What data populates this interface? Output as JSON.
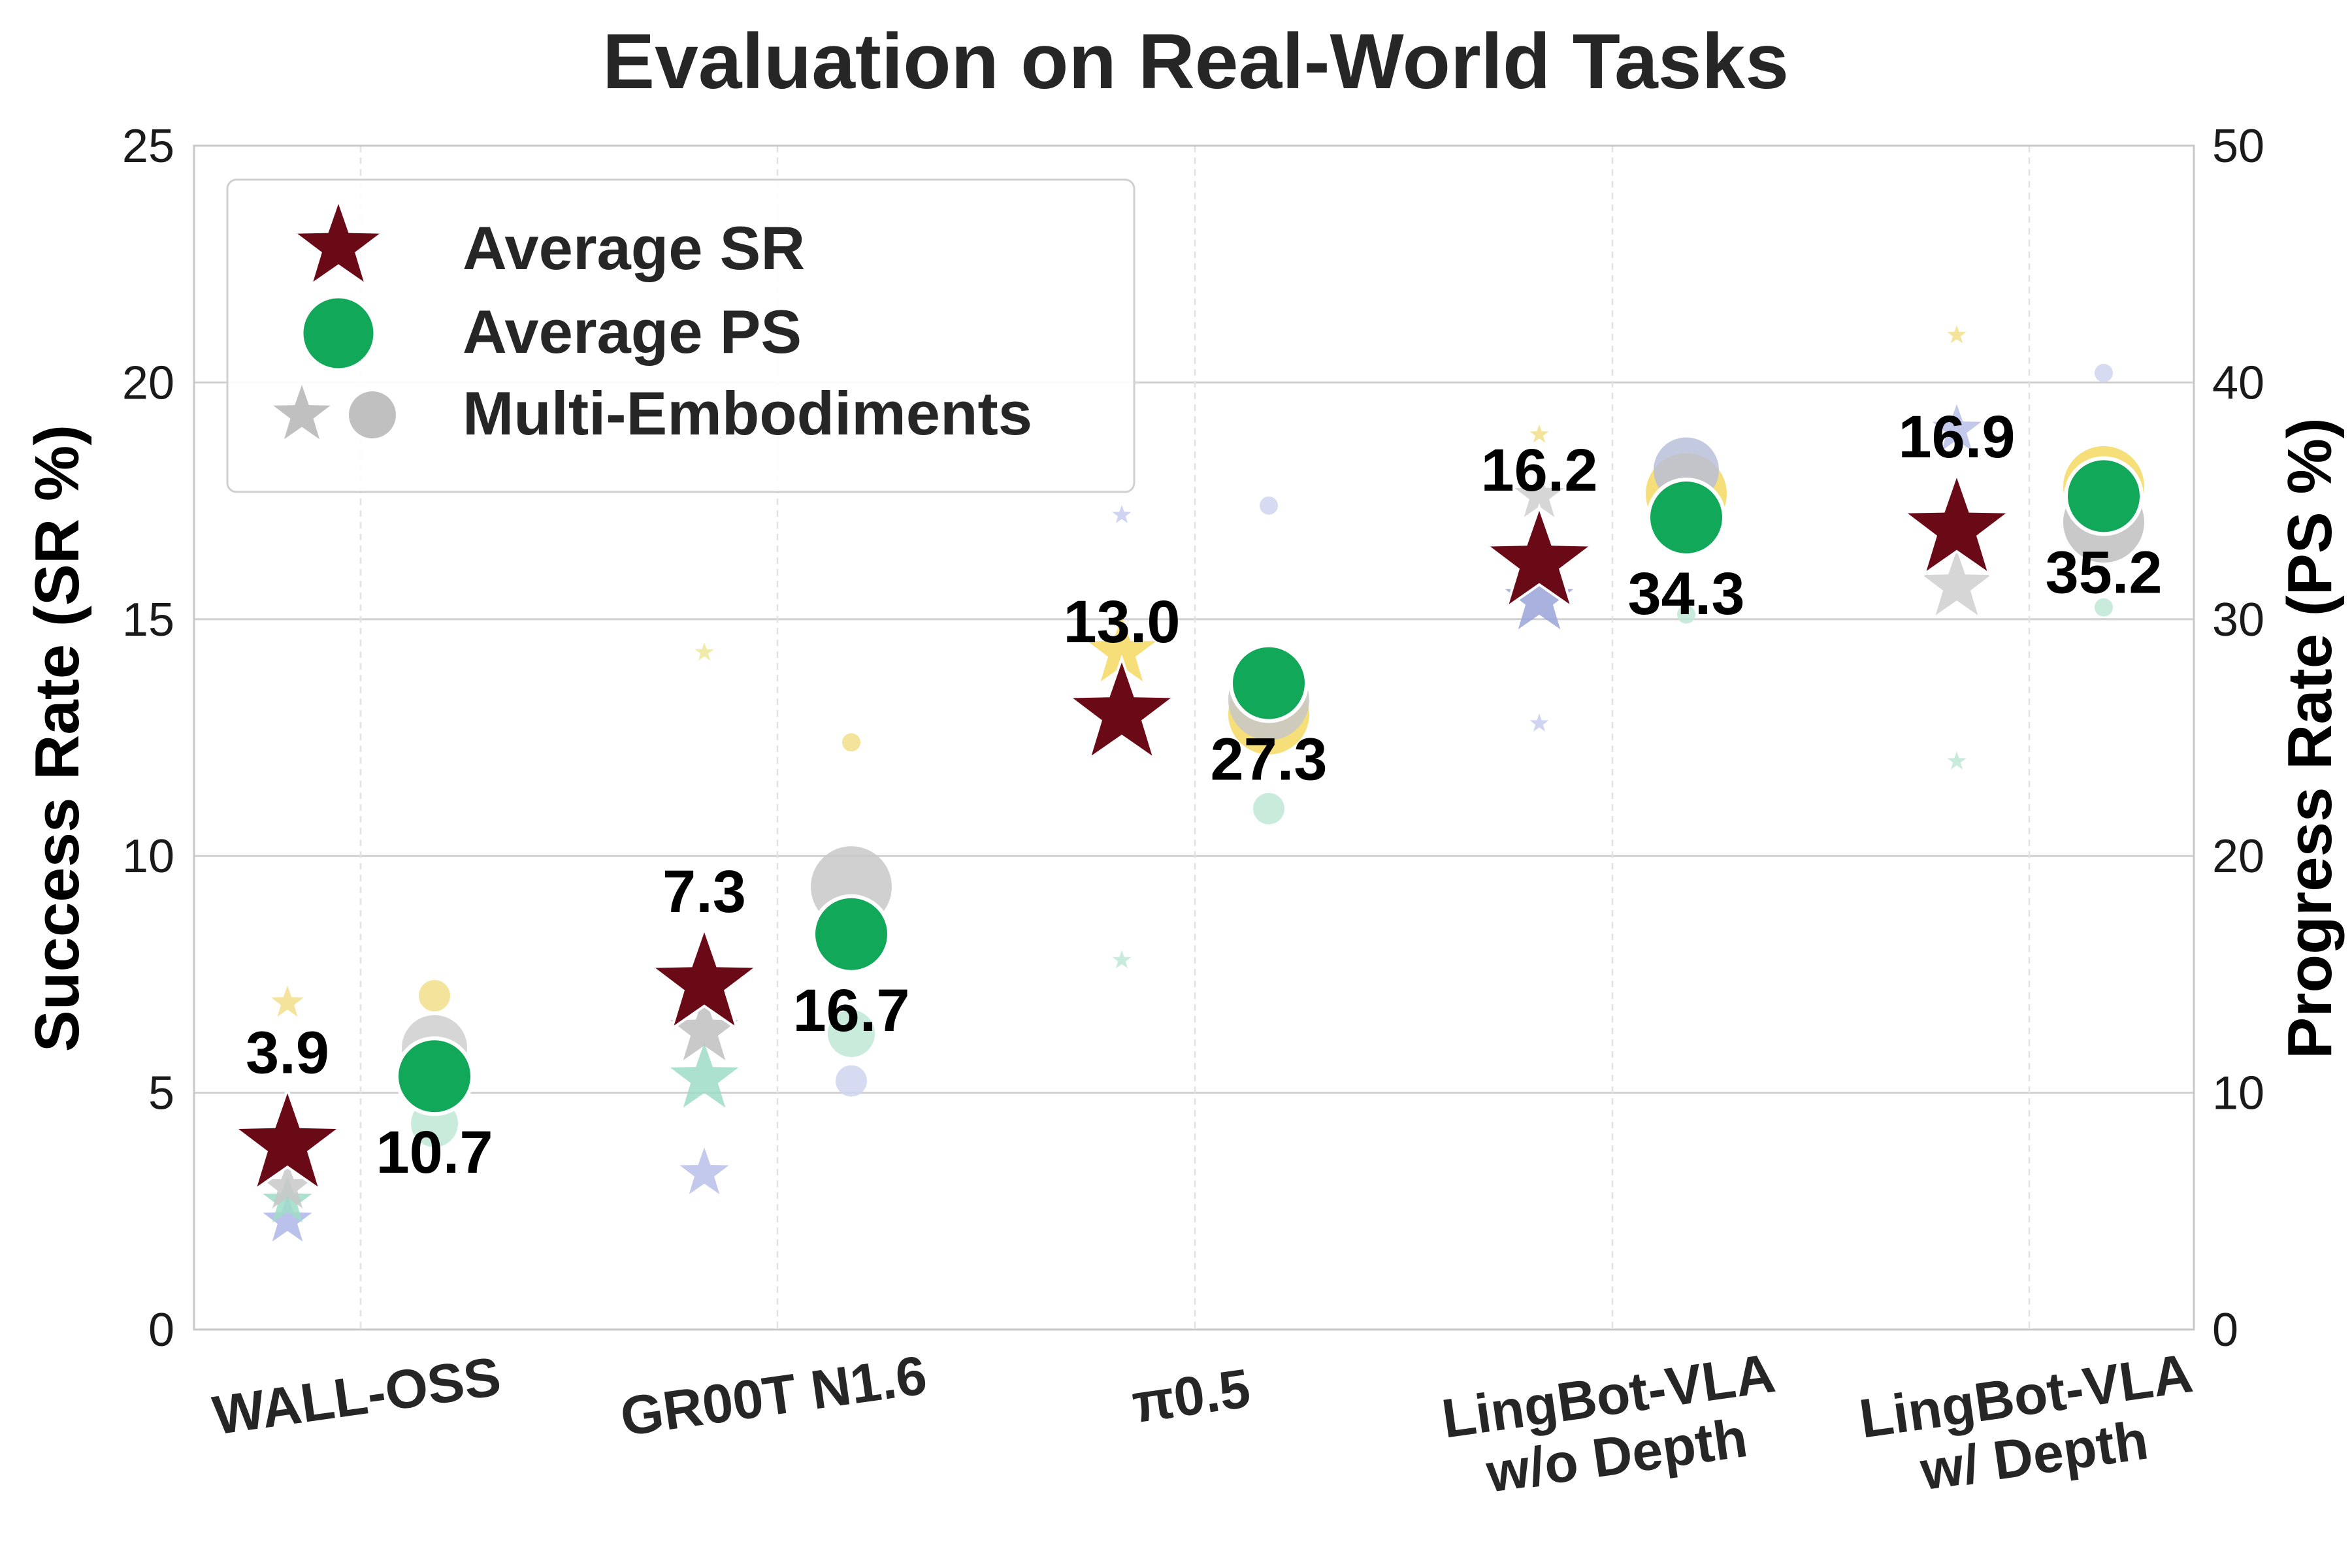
{
  "chart_data": {
    "type": "scatter",
    "title": "Evaluation on Real-World Tasks",
    "categories": [
      "WALL-OSS",
      "GR00T N1.6",
      "π0.5",
      "LingBot-VLA\nw/o Depth",
      "LingBot-VLA\nw/ Depth"
    ],
    "y_left": {
      "label": "Success Rate (SR %)",
      "range": [
        0,
        25
      ],
      "ticks": [
        0,
        5,
        10,
        15,
        20,
        25
      ]
    },
    "y_right": {
      "label": "Progress Rate (PS %)",
      "range": [
        0,
        50
      ],
      "ticks": [
        0,
        10,
        20,
        30,
        40,
        50
      ]
    },
    "grid": true,
    "legend": {
      "position": "top-left",
      "entries": [
        "Average SR",
        "Average PS",
        "Multi-Embodiments"
      ]
    },
    "series": [
      {
        "name": "Average SR",
        "axis": "left",
        "marker": "star",
        "color": "#6b0a17",
        "values": [
          3.9,
          7.3,
          13.0,
          16.2,
          16.9
        ],
        "labels": [
          "3.9",
          "7.3",
          "13.0",
          "16.2",
          "16.9"
        ]
      },
      {
        "name": "Average PS",
        "axis": "right",
        "marker": "circle",
        "color": "#11a85a",
        "values": [
          10.7,
          16.7,
          27.3,
          34.3,
          35.2
        ],
        "labels": [
          "10.7",
          "16.7",
          "27.3",
          "34.3",
          "35.2"
        ]
      }
    ],
    "multi_embodiments": {
      "sr_stars": [
        {
          "category": 0,
          "value": 2.3,
          "color": "#aeb6e6",
          "size": "m"
        },
        {
          "category": 0,
          "value": 2.7,
          "color": "#9fdcc7",
          "size": "m"
        },
        {
          "category": 0,
          "value": 3.0,
          "color": "#c8c8c8",
          "size": "m"
        },
        {
          "category": 0,
          "value": 6.9,
          "color": "#f2de88",
          "size": "s"
        },
        {
          "category": 1,
          "value": 3.3,
          "color": "#b8c0ea",
          "size": "m"
        },
        {
          "category": 1,
          "value": 5.3,
          "color": "#9fdcc7",
          "size": "l"
        },
        {
          "category": 1,
          "value": 6.3,
          "color": "#c0c0c0",
          "size": "l"
        },
        {
          "category": 1,
          "value": 14.3,
          "color": "#f0e69a",
          "size": "xs"
        },
        {
          "category": 2,
          "value": 7.8,
          "color": "#bfe8d6",
          "size": "xs"
        },
        {
          "category": 2,
          "value": 14.3,
          "color": "#f4d860",
          "size": "l"
        },
        {
          "category": 2,
          "value": 17.2,
          "color": "#c8ccf0",
          "size": "xs"
        },
        {
          "category": 3,
          "value": 12.8,
          "color": "#c8ccf0",
          "size": "xs"
        },
        {
          "category": 3,
          "value": 15.4,
          "color": "#9aa3d8",
          "size": "l"
        },
        {
          "category": 3,
          "value": 17.6,
          "color": "#cfcfcf",
          "size": "m"
        },
        {
          "category": 3,
          "value": 18.9,
          "color": "#f2de88",
          "size": "xs"
        },
        {
          "category": 4,
          "value": 12.0,
          "color": "#bfe8d6",
          "size": "xs"
        },
        {
          "category": 4,
          "value": 15.7,
          "color": "#cfcfcf",
          "size": "l"
        },
        {
          "category": 4,
          "value": 19.0,
          "color": "#b8c0ea",
          "size": "m"
        },
        {
          "category": 4,
          "value": 21.0,
          "color": "#f2de88",
          "size": "xs"
        }
      ],
      "ps_dots": [
        {
          "category": 0,
          "value": 8.7,
          "color": "#bfe8d6",
          "size": "m"
        },
        {
          "category": 0,
          "value": 11.9,
          "color": "#cfcfcf",
          "size": "l"
        },
        {
          "category": 0,
          "value": 14.1,
          "color": "#f2de88",
          "size": "s"
        },
        {
          "category": 1,
          "value": 10.5,
          "color": "#cfd5f0",
          "size": "s"
        },
        {
          "category": 1,
          "value": 12.5,
          "color": "#bfe8d6",
          "size": "m"
        },
        {
          "category": 1,
          "value": 18.7,
          "color": "#c8c8c8",
          "size": "xl"
        },
        {
          "category": 1,
          "value": 24.8,
          "color": "#f2de88",
          "size": "xs"
        },
        {
          "category": 2,
          "value": 22.0,
          "color": "#bfe8d6",
          "size": "s"
        },
        {
          "category": 2,
          "value": 26.0,
          "color": "#f4d860",
          "size": "xl"
        },
        {
          "category": 2,
          "value": 26.6,
          "color": "#c8c8c8",
          "size": "xl"
        },
        {
          "category": 2,
          "value": 34.8,
          "color": "#cfd5f0",
          "size": "xs"
        },
        {
          "category": 3,
          "value": 30.2,
          "color": "#bfe8d6",
          "size": "xs"
        },
        {
          "category": 3,
          "value": 35.3,
          "color": "#f4d860",
          "size": "xl"
        },
        {
          "category": 3,
          "value": 36.3,
          "color": "#b8bfd8",
          "size": "l"
        },
        {
          "category": 4,
          "value": 30.5,
          "color": "#bfe8d6",
          "size": "xs"
        },
        {
          "category": 4,
          "value": 34.1,
          "color": "#c0c0c0",
          "size": "xl"
        },
        {
          "category": 4,
          "value": 35.6,
          "color": "#f4d860",
          "size": "xl"
        },
        {
          "category": 4,
          "value": 40.4,
          "color": "#cfd5f0",
          "size": "xs"
        }
      ]
    }
  }
}
